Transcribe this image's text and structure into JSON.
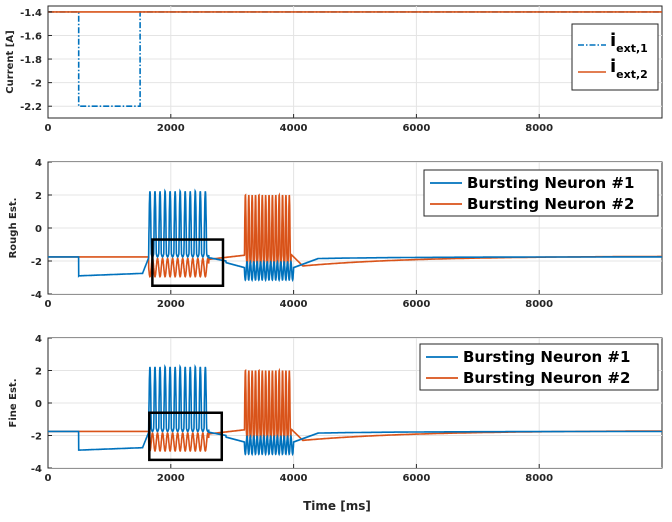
{
  "chart_data": [
    {
      "type": "line",
      "ylabel": "Current [A]",
      "xlabel": "",
      "xlim": [
        0,
        10000
      ],
      "ylim": [
        -2.3,
        -1.35
      ],
      "xticks": [
        0,
        2000,
        4000,
        6000,
        8000
      ],
      "yticks": [
        -2.2,
        -2,
        -1.8,
        -1.6,
        -1.4
      ],
      "ytick_labels": [
        "-2.2",
        "-2",
        "-1.8",
        "-1.6",
        "-1.4"
      ],
      "grid": true,
      "legend": "top-right",
      "series": [
        {
          "name": "i",
          "subscript": "ext,1",
          "color": "#0072BD",
          "style": "dashdot",
          "x": [
            0,
            500,
            500,
            1500,
            1500,
            10000
          ],
          "y": [
            -1.4,
            -1.4,
            -2.2,
            -2.2,
            -1.4,
            -1.4
          ]
        },
        {
          "name": "i",
          "subscript": "ext,2",
          "color": "#D95319",
          "style": "solid",
          "x": [
            0,
            10000
          ],
          "y": [
            -1.4,
            -1.4
          ]
        }
      ]
    },
    {
      "type": "line",
      "ylabel": "Rough Est.",
      "xlabel": "",
      "xlim": [
        0,
        10000
      ],
      "ylim": [
        -4,
        4
      ],
      "xticks": [
        0,
        2000,
        4000,
        6000,
        8000
      ],
      "yticks": [
        -4,
        -2,
        0,
        2,
        4
      ],
      "ytick_labels": [
        "-4",
        "-2",
        "0",
        "2",
        "4"
      ],
      "grid": true,
      "legend": "top-right",
      "series": [
        {
          "name": "Bursting Neuron #1",
          "color": "#0072BD"
        },
        {
          "name": "Bursting Neuron #2",
          "color": "#D95319"
        }
      ],
      "highlight_box": {
        "x": [
          1700,
          2850
        ],
        "y": [
          -3.5,
          -0.7
        ]
      }
    },
    {
      "type": "line",
      "ylabel": "Fine Est.",
      "xlabel": "Time [ms]",
      "xlim": [
        0,
        10000
      ],
      "ylim": [
        -4,
        4
      ],
      "xticks": [
        0,
        2000,
        4000,
        6000,
        8000
      ],
      "yticks": [
        -4,
        -2,
        0,
        2,
        4
      ],
      "ytick_labels": [
        "-4",
        "-2",
        "0",
        "2",
        "4"
      ],
      "grid": true,
      "legend": "top-right",
      "series": [
        {
          "name": "Bursting Neuron #1",
          "color": "#0072BD"
        },
        {
          "name": "Bursting Neuron #2",
          "color": "#D95319"
        }
      ],
      "highlight_box": {
        "x": [
          1650,
          2830
        ],
        "y": [
          -3.5,
          -0.6
        ]
      }
    }
  ]
}
